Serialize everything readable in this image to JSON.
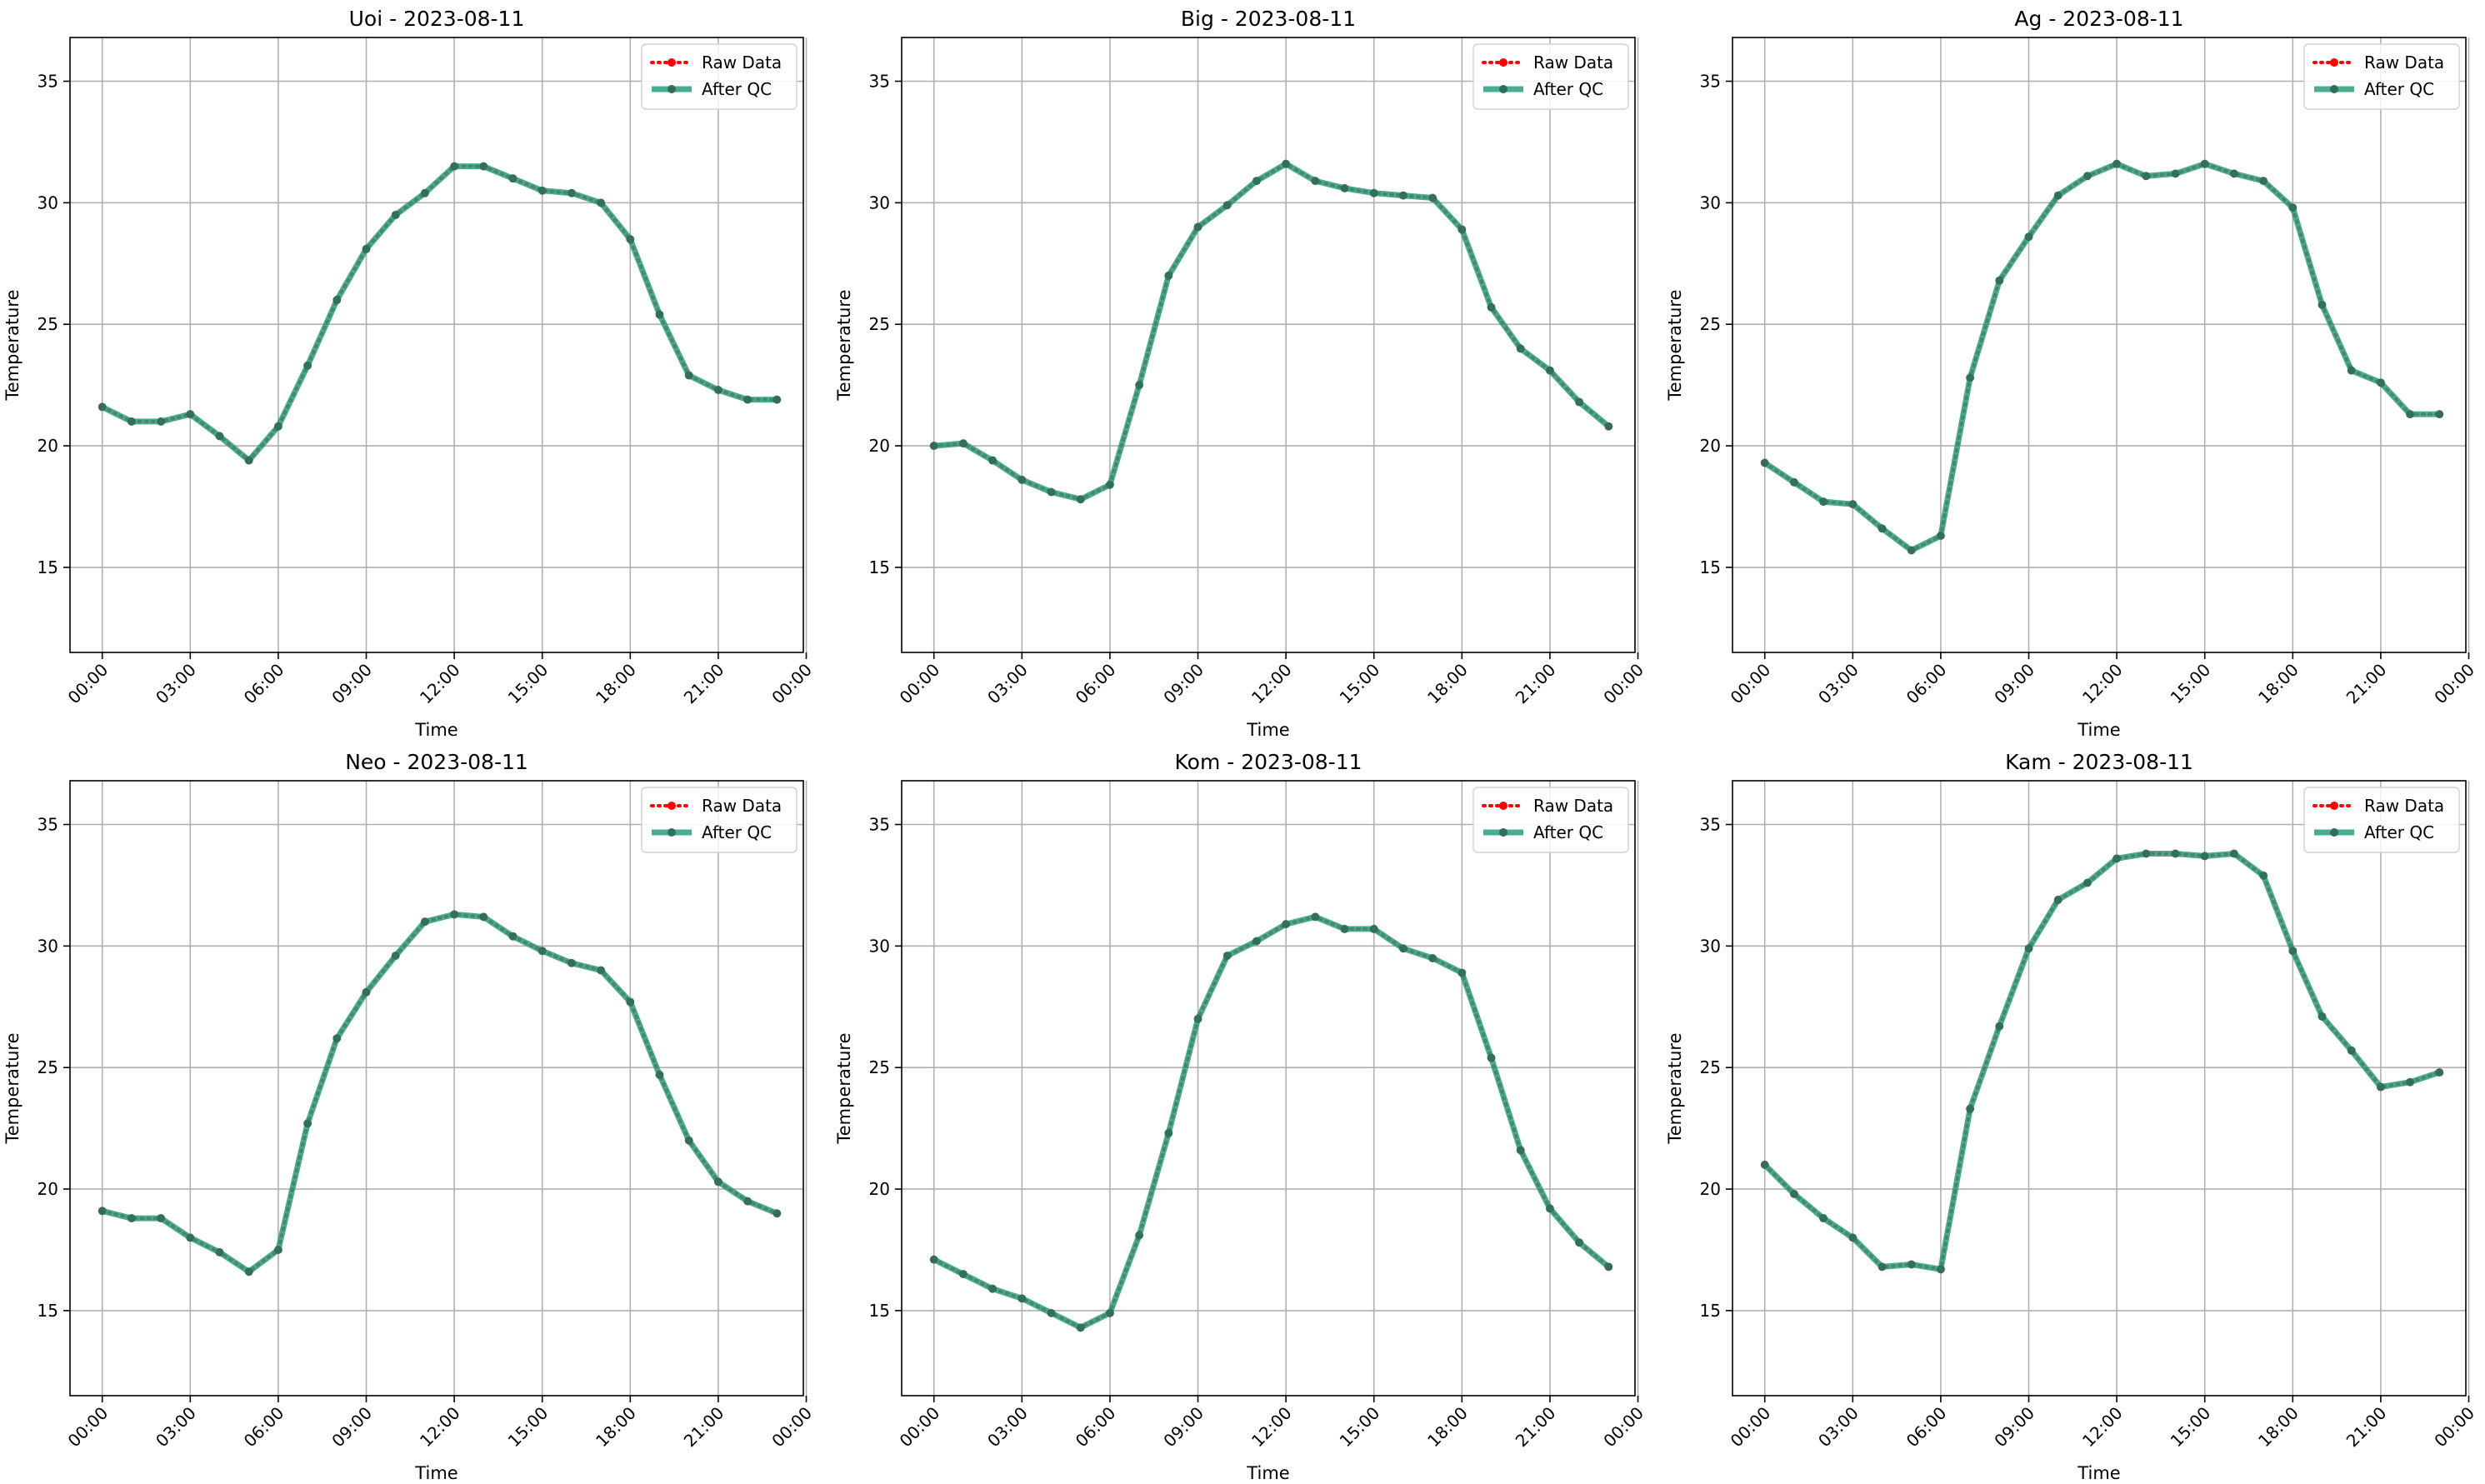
{
  "chart_data": [
    {
      "type": "line",
      "title": "Uoi - 2023-08-11",
      "xlabel": "Time",
      "ylabel": "Temperature",
      "ylim": [
        11.5,
        36.8
      ],
      "yticks": [
        15,
        20,
        25,
        30,
        35
      ],
      "xticks": [
        "00:00",
        "03:00",
        "06:00",
        "09:00",
        "12:00",
        "15:00",
        "18:00",
        "21:00",
        "00:00"
      ],
      "grid": true,
      "legend_position": "top-right",
      "x_hours": [
        0,
        1,
        2,
        3,
        4,
        5,
        6,
        7,
        8,
        9,
        10,
        11,
        12,
        13,
        14,
        15,
        16,
        17,
        18,
        19,
        20,
        21,
        22,
        23
      ],
      "series": [
        {
          "name": "Raw Data",
          "style": "dotted",
          "color": "#ff0000",
          "values": [
            21.6,
            21.0,
            21.0,
            21.3,
            20.4,
            19.4,
            20.8,
            23.3,
            26.0,
            28.1,
            29.5,
            30.4,
            31.5,
            31.5,
            31.0,
            30.5,
            30.4,
            30.0,
            28.5,
            25.4,
            22.9,
            22.3,
            21.9,
            21.9
          ]
        },
        {
          "name": "After QC",
          "style": "solid",
          "color": "#2a9d7c",
          "values": [
            21.6,
            21.0,
            21.0,
            21.3,
            20.4,
            19.4,
            20.8,
            23.3,
            26.0,
            28.1,
            29.5,
            30.4,
            31.5,
            31.5,
            31.0,
            30.5,
            30.4,
            30.0,
            28.5,
            25.4,
            22.9,
            22.3,
            21.9,
            21.9
          ]
        }
      ]
    },
    {
      "type": "line",
      "title": "Big - 2023-08-11",
      "xlabel": "Time",
      "ylabel": "Temperature",
      "ylim": [
        11.5,
        36.8
      ],
      "yticks": [
        15,
        20,
        25,
        30,
        35
      ],
      "xticks": [
        "00:00",
        "03:00",
        "06:00",
        "09:00",
        "12:00",
        "15:00",
        "18:00",
        "21:00",
        "00:00"
      ],
      "grid": true,
      "legend_position": "top-right",
      "x_hours": [
        0,
        1,
        2,
        3,
        4,
        5,
        6,
        7,
        8,
        9,
        10,
        11,
        12,
        13,
        14,
        15,
        16,
        17,
        18,
        19,
        20,
        21,
        22,
        23
      ],
      "series": [
        {
          "name": "Raw Data",
          "style": "dotted",
          "color": "#ff0000",
          "values": [
            20.0,
            20.1,
            19.4,
            18.6,
            18.1,
            17.8,
            18.4,
            22.5,
            27.0,
            29.0,
            29.9,
            30.9,
            31.6,
            30.9,
            30.6,
            30.4,
            30.3,
            30.2,
            28.9,
            25.7,
            24.0,
            23.1,
            21.8,
            20.8
          ]
        },
        {
          "name": "After QC",
          "style": "solid",
          "color": "#2a9d7c",
          "values": [
            20.0,
            20.1,
            19.4,
            18.6,
            18.1,
            17.8,
            18.4,
            22.5,
            27.0,
            29.0,
            29.9,
            30.9,
            31.6,
            30.9,
            30.6,
            30.4,
            30.3,
            30.2,
            28.9,
            25.7,
            24.0,
            23.1,
            21.8,
            20.8
          ]
        }
      ]
    },
    {
      "type": "line",
      "title": "Ag - 2023-08-11",
      "xlabel": "Time",
      "ylabel": "Temperature",
      "ylim": [
        11.5,
        36.8
      ],
      "yticks": [
        15,
        20,
        25,
        30,
        35
      ],
      "xticks": [
        "00:00",
        "03:00",
        "06:00",
        "09:00",
        "12:00",
        "15:00",
        "18:00",
        "21:00",
        "00:00"
      ],
      "grid": true,
      "legend_position": "top-right",
      "x_hours": [
        0,
        1,
        2,
        3,
        4,
        5,
        6,
        7,
        8,
        9,
        10,
        11,
        12,
        13,
        14,
        15,
        16,
        17,
        18,
        19,
        20,
        21,
        22,
        23
      ],
      "series": [
        {
          "name": "Raw Data",
          "style": "dotted",
          "color": "#ff0000",
          "values": [
            19.3,
            18.5,
            17.7,
            17.6,
            16.6,
            15.7,
            16.3,
            22.8,
            26.8,
            28.6,
            30.3,
            31.1,
            31.6,
            31.1,
            31.2,
            31.6,
            31.2,
            30.9,
            29.8,
            25.8,
            23.1,
            22.6,
            21.3,
            21.3
          ]
        },
        {
          "name": "After QC",
          "style": "solid",
          "color": "#2a9d7c",
          "values": [
            19.3,
            18.5,
            17.7,
            17.6,
            16.6,
            15.7,
            16.3,
            22.8,
            26.8,
            28.6,
            30.3,
            31.1,
            31.6,
            31.1,
            31.2,
            31.6,
            31.2,
            30.9,
            29.8,
            25.8,
            23.1,
            22.6,
            21.3,
            21.3
          ]
        }
      ]
    },
    {
      "type": "line",
      "title": "Neo - 2023-08-11",
      "xlabel": "Time",
      "ylabel": "Temperature",
      "ylim": [
        11.5,
        36.8
      ],
      "yticks": [
        15,
        20,
        25,
        30,
        35
      ],
      "xticks": [
        "00:00",
        "03:00",
        "06:00",
        "09:00",
        "12:00",
        "15:00",
        "18:00",
        "21:00",
        "00:00"
      ],
      "grid": true,
      "legend_position": "top-right",
      "x_hours": [
        0,
        1,
        2,
        3,
        4,
        5,
        6,
        7,
        8,
        9,
        10,
        11,
        12,
        13,
        14,
        15,
        16,
        17,
        18,
        19,
        20,
        21,
        22,
        23
      ],
      "series": [
        {
          "name": "Raw Data",
          "style": "dotted",
          "color": "#ff0000",
          "values": [
            19.1,
            18.8,
            18.8,
            18.0,
            17.4,
            16.6,
            17.5,
            22.7,
            26.2,
            28.1,
            29.6,
            31.0,
            31.3,
            31.2,
            30.4,
            29.8,
            29.3,
            29.0,
            27.7,
            24.7,
            22.0,
            20.3,
            19.5,
            19.0
          ]
        },
        {
          "name": "After QC",
          "style": "solid",
          "color": "#2a9d7c",
          "values": [
            19.1,
            18.8,
            18.8,
            18.0,
            17.4,
            16.6,
            17.5,
            22.7,
            26.2,
            28.1,
            29.6,
            31.0,
            31.3,
            31.2,
            30.4,
            29.8,
            29.3,
            29.0,
            27.7,
            24.7,
            22.0,
            20.3,
            19.5,
            19.0
          ]
        }
      ]
    },
    {
      "type": "line",
      "title": "Kom - 2023-08-11",
      "xlabel": "Time",
      "ylabel": "Temperature",
      "ylim": [
        11.5,
        36.8
      ],
      "yticks": [
        15,
        20,
        25,
        30,
        35
      ],
      "xticks": [
        "00:00",
        "03:00",
        "06:00",
        "09:00",
        "12:00",
        "15:00",
        "18:00",
        "21:00",
        "00:00"
      ],
      "grid": true,
      "legend_position": "top-right",
      "x_hours": [
        0,
        1,
        2,
        3,
        4,
        5,
        6,
        7,
        8,
        9,
        10,
        11,
        12,
        13,
        14,
        15,
        16,
        17,
        18,
        19,
        20,
        21,
        22,
        23
      ],
      "series": [
        {
          "name": "Raw Data",
          "style": "dotted",
          "color": "#ff0000",
          "values": [
            17.1,
            16.5,
            15.9,
            15.5,
            14.9,
            14.3,
            14.9,
            18.1,
            22.3,
            27.0,
            29.6,
            30.2,
            30.9,
            31.2,
            30.7,
            30.7,
            29.9,
            29.5,
            28.9,
            25.4,
            21.6,
            19.2,
            17.8,
            16.8
          ]
        },
        {
          "name": "After QC",
          "style": "solid",
          "color": "#2a9d7c",
          "values": [
            17.1,
            16.5,
            15.9,
            15.5,
            14.9,
            14.3,
            14.9,
            18.1,
            22.3,
            27.0,
            29.6,
            30.2,
            30.9,
            31.2,
            30.7,
            30.7,
            29.9,
            29.5,
            28.9,
            25.4,
            21.6,
            19.2,
            17.8,
            16.8
          ]
        }
      ]
    },
    {
      "type": "line",
      "title": "Kam - 2023-08-11",
      "xlabel": "Time",
      "ylabel": "Temperature",
      "ylim": [
        11.5,
        36.8
      ],
      "yticks": [
        15,
        20,
        25,
        30,
        35
      ],
      "xticks": [
        "00:00",
        "03:00",
        "06:00",
        "09:00",
        "12:00",
        "15:00",
        "18:00",
        "21:00",
        "00:00"
      ],
      "grid": true,
      "legend_position": "top-right",
      "x_hours": [
        0,
        1,
        2,
        3,
        4,
        5,
        6,
        7,
        8,
        9,
        10,
        11,
        12,
        13,
        14,
        15,
        16,
        17,
        18,
        19,
        20,
        21,
        22,
        23
      ],
      "series": [
        {
          "name": "Raw Data",
          "style": "dotted",
          "color": "#ff0000",
          "values": [
            21.0,
            19.8,
            18.8,
            18.0,
            16.8,
            16.9,
            16.7,
            23.3,
            26.7,
            29.9,
            31.9,
            32.6,
            33.6,
            33.8,
            33.8,
            33.7,
            33.8,
            32.9,
            29.8,
            27.1,
            25.7,
            24.2,
            24.4,
            24.8
          ]
        },
        {
          "name": "After QC",
          "style": "solid",
          "color": "#2a9d7c",
          "values": [
            21.0,
            19.8,
            18.8,
            18.0,
            16.8,
            16.9,
            16.7,
            23.3,
            26.7,
            29.9,
            31.9,
            32.6,
            33.6,
            33.8,
            33.8,
            33.7,
            33.8,
            32.9,
            29.8,
            27.1,
            25.7,
            24.2,
            24.4,
            24.8
          ]
        }
      ]
    }
  ]
}
